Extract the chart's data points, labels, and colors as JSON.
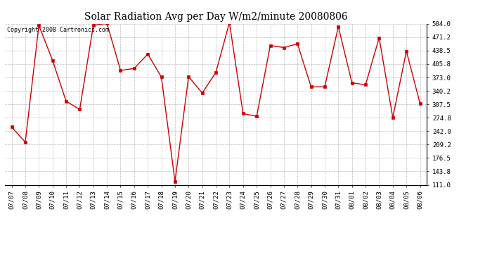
{
  "title": "Solar Radiation Avg per Day W/m2/minute 20080806",
  "copyright": "Copyright 2008 Cartronics.com",
  "x_labels": [
    "07/07",
    "07/08",
    "07/09",
    "07/10",
    "07/11",
    "07/12",
    "07/13",
    "07/14",
    "07/15",
    "07/16",
    "07/17",
    "07/18",
    "07/19",
    "07/20",
    "07/21",
    "07/22",
    "07/23",
    "07/24",
    "07/25",
    "07/26",
    "07/27",
    "07/28",
    "07/29",
    "07/30",
    "07/31",
    "08/01",
    "08/02",
    "08/03",
    "08/04",
    "08/05",
    "08/06"
  ],
  "y_values": [
    252,
    215,
    500,
    415,
    315,
    295,
    500,
    505,
    390,
    395,
    430,
    374,
    119,
    375,
    335,
    385,
    507,
    285,
    278,
    451,
    446,
    455,
    350,
    350,
    497,
    360,
    355,
    470,
    275,
    437,
    310
  ],
  "y_ticks": [
    111.0,
    143.8,
    176.5,
    209.2,
    242.0,
    274.8,
    307.5,
    340.2,
    373.0,
    405.8,
    438.5,
    471.2,
    504.0
  ],
  "y_min": 111.0,
  "y_max": 504.0,
  "line_color": "#cc0000",
  "marker_color": "#cc0000",
  "bg_color": "#ffffff",
  "grid_color": "#aaaaaa",
  "title_fontsize": 10,
  "axis_fontsize": 6.5,
  "copyright_fontsize": 6.0
}
